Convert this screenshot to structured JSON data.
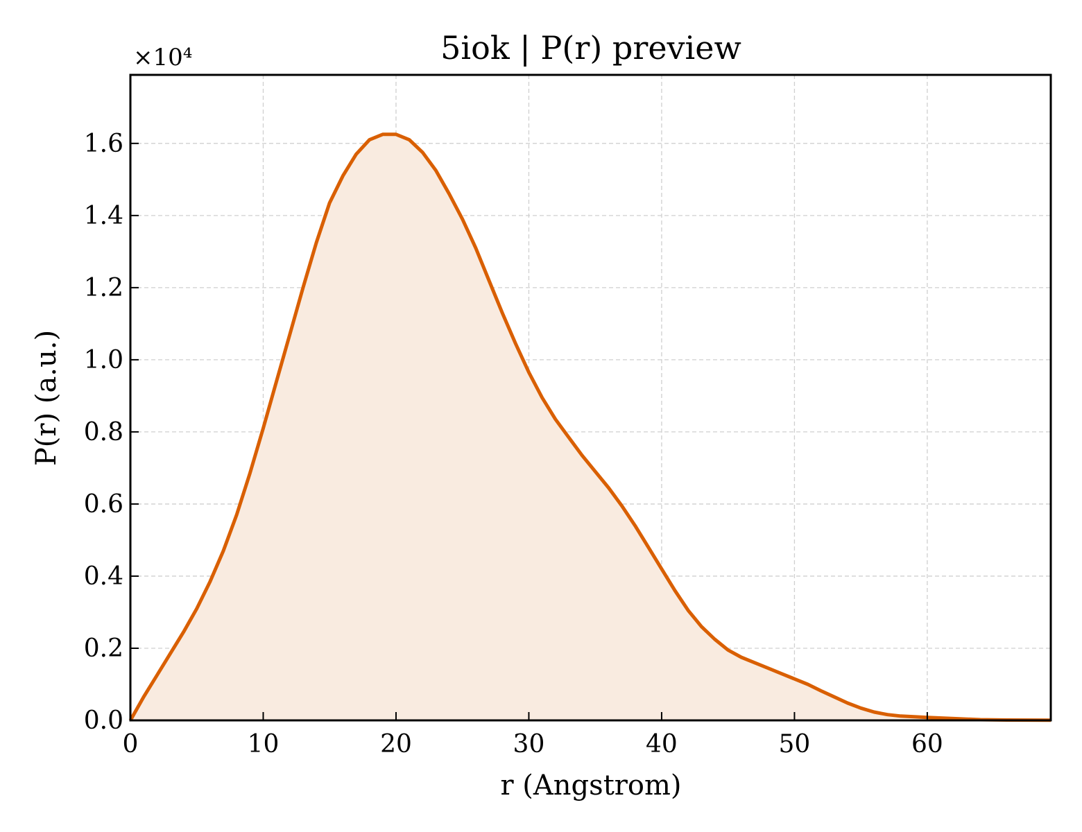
{
  "chart_data": {
    "type": "area",
    "title": "5iok | P(r) preview",
    "xlabel": "r (Angstrom)",
    "ylabel": "P(r) (a.u.)",
    "y_offset_label": "×10⁴",
    "y_scale": 10000,
    "xlim": [
      0,
      69.3
    ],
    "ylim": [
      0,
      17900
    ],
    "x_ticks": [
      0,
      10,
      20,
      30,
      40,
      50,
      60
    ],
    "x_tick_labels": [
      "0",
      "10",
      "20",
      "30",
      "40",
      "50",
      "60"
    ],
    "y_ticks": [
      0,
      2000,
      4000,
      6000,
      8000,
      10000,
      12000,
      14000,
      16000
    ],
    "y_tick_labels": [
      "0.0",
      "0.2",
      "0.4",
      "0.6",
      "0.8",
      "1.0",
      "1.2",
      "1.4",
      "1.6"
    ],
    "grid": true,
    "line_color": "#d95f02",
    "fill_color": "#f9ebe0",
    "series": [
      {
        "x": [
          0,
          1,
          2,
          3,
          4,
          5,
          6,
          7,
          8,
          9,
          10,
          11,
          12,
          13,
          14,
          15,
          16,
          17,
          18,
          19,
          20,
          21,
          22,
          23,
          24,
          25,
          26,
          27,
          28,
          29,
          30,
          31,
          32,
          33,
          34,
          35,
          36,
          37,
          38,
          39,
          40,
          41,
          42,
          43,
          44,
          45,
          46,
          47,
          48,
          49,
          50,
          51,
          52,
          53,
          54,
          55,
          56,
          57,
          58,
          59,
          60,
          62,
          64,
          66,
          69.3
        ],
        "values": [
          0,
          650,
          1250,
          1850,
          2450,
          3100,
          3850,
          4700,
          5700,
          6850,
          8100,
          9400,
          10700,
          12000,
          13250,
          14350,
          15100,
          15700,
          16100,
          16250,
          16250,
          16100,
          15750,
          15250,
          14600,
          13900,
          13100,
          12200,
          11300,
          10450,
          9650,
          8950,
          8350,
          7850,
          7350,
          6900,
          6450,
          5950,
          5400,
          4800,
          4200,
          3600,
          3050,
          2600,
          2250,
          1950,
          1750,
          1600,
          1450,
          1300,
          1150,
          1000,
          820,
          650,
          480,
          340,
          230,
          160,
          120,
          100,
          80,
          50,
          20,
          10,
          5
        ]
      }
    ]
  }
}
